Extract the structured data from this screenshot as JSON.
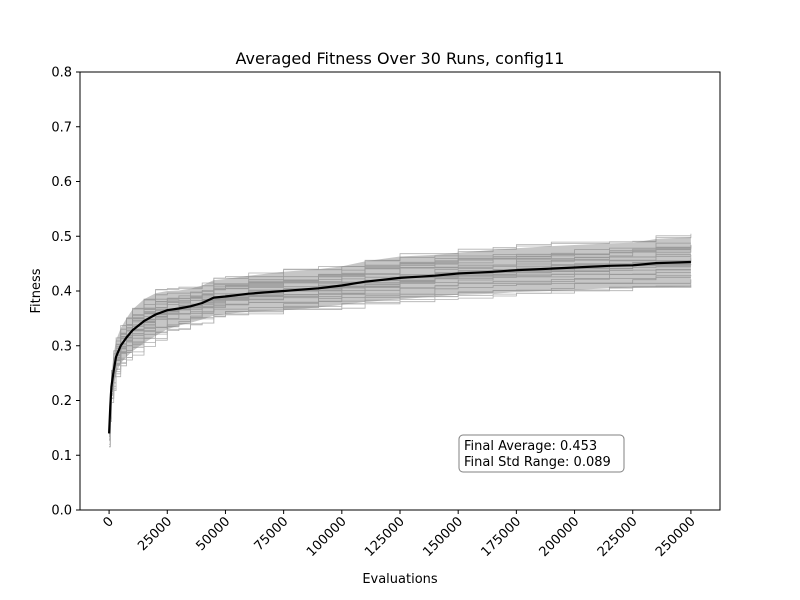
{
  "chart_data": {
    "type": "line",
    "title": "Averaged Fitness Over 30 Runs, config11",
    "xlabel": "Evaluations",
    "ylabel": "Fitness",
    "xlim": [
      -12500,
      262500
    ],
    "ylim": [
      0.0,
      0.8
    ],
    "xticks": [
      0,
      25000,
      50000,
      75000,
      100000,
      125000,
      150000,
      175000,
      200000,
      225000,
      250000
    ],
    "xtick_labels": [
      "0",
      "25000",
      "50000",
      "75000",
      "100000",
      "125000",
      "150000",
      "175000",
      "200000",
      "225000",
      "250000"
    ],
    "yticks": [
      0.0,
      0.1,
      0.2,
      0.3,
      0.4,
      0.5,
      0.6,
      0.7,
      0.8
    ],
    "ytick_labels": [
      "0.0",
      "0.1",
      "0.2",
      "0.3",
      "0.4",
      "0.5",
      "0.6",
      "0.7",
      "0.8"
    ],
    "grid": false,
    "runs_count": 30,
    "mean_series": {
      "x": [
        0,
        500,
        1000,
        2000,
        3000,
        5000,
        7500,
        10000,
        15000,
        20000,
        25000,
        30000,
        35000,
        40000,
        45000,
        50000,
        60000,
        75000,
        90000,
        100000,
        110000,
        125000,
        140000,
        150000,
        165000,
        175000,
        190000,
        200000,
        215000,
        225000,
        235000,
        250000
      ],
      "y": [
        0.14,
        0.19,
        0.225,
        0.255,
        0.28,
        0.3,
        0.315,
        0.328,
        0.345,
        0.357,
        0.365,
        0.368,
        0.372,
        0.378,
        0.388,
        0.39,
        0.395,
        0.4,
        0.405,
        0.41,
        0.417,
        0.424,
        0.428,
        0.432,
        0.435,
        0.438,
        0.441,
        0.443,
        0.446,
        0.447,
        0.451,
        0.453
      ]
    },
    "std_band": {
      "x": [
        0,
        500,
        1000,
        2000,
        3000,
        5000,
        7500,
        10000,
        15000,
        20000,
        25000,
        30000,
        35000,
        40000,
        45000,
        50000,
        60000,
        75000,
        90000,
        100000,
        110000,
        125000,
        140000,
        150000,
        165000,
        175000,
        190000,
        200000,
        215000,
        225000,
        235000,
        250000
      ],
      "lower": [
        0.12,
        0.165,
        0.2,
        0.225,
        0.25,
        0.268,
        0.28,
        0.29,
        0.305,
        0.318,
        0.33,
        0.337,
        0.342,
        0.348,
        0.355,
        0.358,
        0.362,
        0.365,
        0.37,
        0.375,
        0.38,
        0.385,
        0.39,
        0.393,
        0.395,
        0.398,
        0.4,
        0.402,
        0.405,
        0.406,
        0.407,
        0.408
      ],
      "upper": [
        0.16,
        0.215,
        0.25,
        0.285,
        0.31,
        0.332,
        0.35,
        0.366,
        0.385,
        0.396,
        0.4,
        0.401,
        0.404,
        0.41,
        0.42,
        0.422,
        0.428,
        0.435,
        0.44,
        0.445,
        0.454,
        0.463,
        0.466,
        0.47,
        0.475,
        0.478,
        0.482,
        0.484,
        0.487,
        0.488,
        0.495,
        0.498
      ]
    },
    "annotation": {
      "line1": "Final Average: 0.453",
      "line2": "Final Std Range: 0.089"
    },
    "colors": {
      "mean_line": "#000000",
      "band": "#808080",
      "runs": "#b0b0b0",
      "annotation_border": "#808080"
    }
  }
}
